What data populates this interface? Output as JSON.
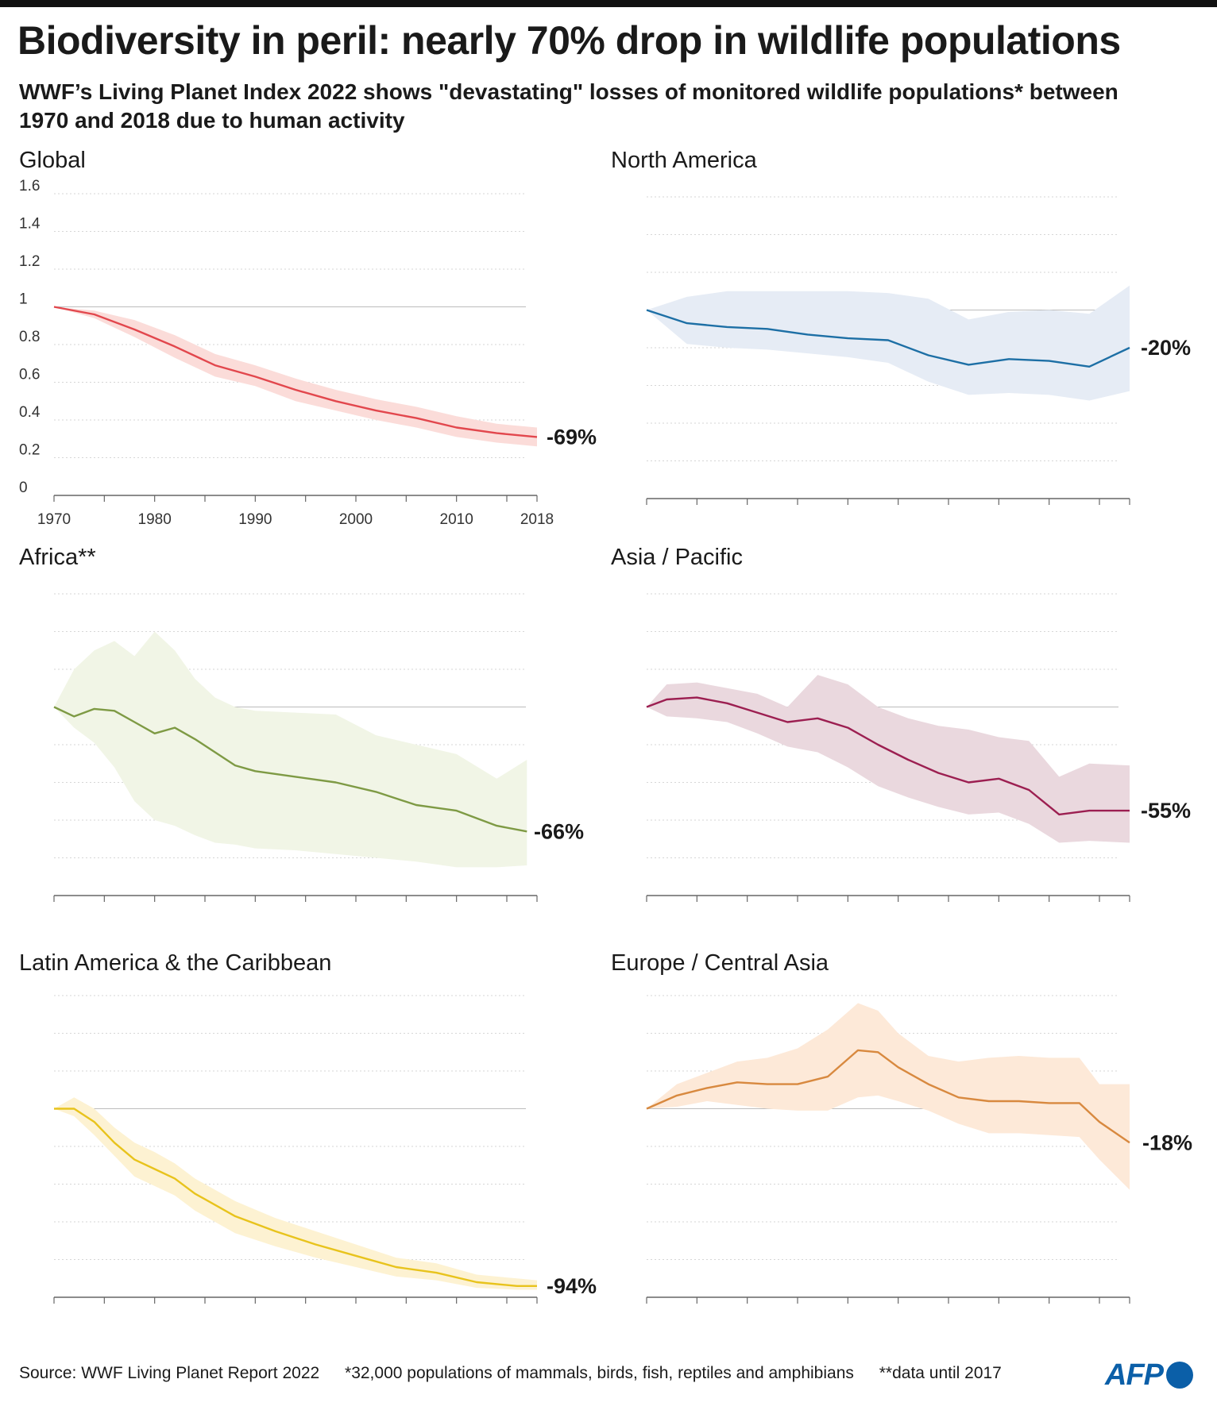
{
  "title": "Biodiversity in peril: nearly 70% drop in wildlife populations",
  "subtitle": "WWF’s Living Planet Index 2022 shows \"devastating\" losses of monitored wildlife populations* between 1970 and 2018 due to human activity",
  "footer": {
    "source": "Source: WWF Living Planet Report 2022",
    "note1": "*32,000 populations of mammals, birds, fish, reptiles and amphibians",
    "note2": "**data until 2017"
  },
  "logo": "AFP",
  "chart_data": [
    {
      "type": "line",
      "title": "Global",
      "color": "#e2474d",
      "band_color": "#fbdcd9",
      "change_label": "-69%",
      "ylim": [
        0,
        1.6
      ],
      "yticks": [
        0,
        0.2,
        0.4,
        0.6,
        0.8,
        1,
        1.2,
        1.4,
        1.6
      ],
      "xlim": [
        1970,
        2018
      ],
      "xticks": [
        1970,
        1980,
        1990,
        2000,
        2010,
        2018
      ],
      "x": [
        1970,
        1974,
        1978,
        1982,
        1986,
        1990,
        1994,
        1998,
        2002,
        2006,
        2010,
        2014,
        2018
      ],
      "values": [
        1.0,
        0.96,
        0.88,
        0.79,
        0.69,
        0.63,
        0.56,
        0.5,
        0.45,
        0.41,
        0.36,
        0.33,
        0.31
      ],
      "upper": [
        1.0,
        0.98,
        0.93,
        0.85,
        0.75,
        0.69,
        0.62,
        0.56,
        0.51,
        0.47,
        0.42,
        0.38,
        0.36
      ],
      "lower": [
        1.0,
        0.94,
        0.84,
        0.73,
        0.63,
        0.58,
        0.5,
        0.45,
        0.4,
        0.36,
        0.31,
        0.28,
        0.26
      ]
    },
    {
      "type": "line",
      "title": "North America",
      "color": "#1d6fa5",
      "band_color": "#e6ecf5",
      "change_label": "-20%",
      "ylim": [
        0,
        1.6
      ],
      "xlim": [
        1970,
        2018
      ],
      "x": [
        1970,
        1974,
        1978,
        1982,
        1986,
        1990,
        1994,
        1998,
        2002,
        2006,
        2010,
        2014,
        2018
      ],
      "values": [
        1.0,
        0.93,
        0.91,
        0.9,
        0.87,
        0.85,
        0.84,
        0.76,
        0.71,
        0.74,
        0.73,
        0.7,
        0.8
      ],
      "upper": [
        1.0,
        1.07,
        1.1,
        1.1,
        1.1,
        1.1,
        1.09,
        1.06,
        0.95,
        0.99,
        1.0,
        0.98,
        1.13
      ],
      "lower": [
        1.0,
        0.82,
        0.8,
        0.79,
        0.77,
        0.75,
        0.72,
        0.62,
        0.55,
        0.56,
        0.55,
        0.52,
        0.57
      ]
    },
    {
      "type": "line",
      "title": "Africa**",
      "color": "#7e9a44",
      "band_color": "#f1f5e6",
      "change_label": "-66%",
      "ylim": [
        0,
        1.6
      ],
      "xlim": [
        1970,
        2018
      ],
      "x": [
        1970,
        1972,
        1974,
        1976,
        1978,
        1980,
        1982,
        1984,
        1986,
        1988,
        1990,
        1994,
        1998,
        2002,
        2006,
        2010,
        2014,
        2017
      ],
      "values": [
        1.0,
        0.95,
        0.99,
        0.98,
        0.92,
        0.86,
        0.89,
        0.83,
        0.76,
        0.69,
        0.66,
        0.63,
        0.6,
        0.55,
        0.48,
        0.45,
        0.37,
        0.34
      ],
      "upper": [
        1.0,
        1.2,
        1.3,
        1.35,
        1.27,
        1.4,
        1.3,
        1.15,
        1.05,
        1.0,
        0.98,
        0.97,
        0.96,
        0.85,
        0.8,
        0.75,
        0.62,
        0.72
      ],
      "lower": [
        1.0,
        0.89,
        0.81,
        0.68,
        0.5,
        0.4,
        0.37,
        0.32,
        0.28,
        0.27,
        0.25,
        0.24,
        0.22,
        0.2,
        0.18,
        0.15,
        0.15,
        0.16
      ]
    },
    {
      "type": "line",
      "title": "Asia / Pacific",
      "color": "#9c1f51",
      "band_color": "#ead8de",
      "change_label": "-55%",
      "ylim": [
        0,
        1.6
      ],
      "xlim": [
        1970,
        2018
      ],
      "x": [
        1970,
        1972,
        1975,
        1978,
        1981,
        1984,
        1987,
        1990,
        1993,
        1996,
        1999,
        2002,
        2005,
        2008,
        2011,
        2014,
        2018
      ],
      "values": [
        1.0,
        1.04,
        1.05,
        1.02,
        0.97,
        0.92,
        0.94,
        0.89,
        0.8,
        0.72,
        0.65,
        0.6,
        0.62,
        0.56,
        0.43,
        0.45,
        0.45
      ],
      "upper": [
        1.0,
        1.12,
        1.13,
        1.1,
        1.07,
        1.0,
        1.17,
        1.12,
        1.0,
        0.94,
        0.9,
        0.88,
        0.84,
        0.82,
        0.63,
        0.7,
        0.69
      ],
      "lower": [
        1.0,
        0.95,
        0.94,
        0.92,
        0.86,
        0.79,
        0.76,
        0.68,
        0.58,
        0.52,
        0.47,
        0.43,
        0.44,
        0.38,
        0.28,
        0.29,
        0.28
      ]
    },
    {
      "type": "line",
      "title": "Latin America & the Caribbean",
      "color": "#e8c31c",
      "band_color": "#fdf2d2",
      "change_label": "-94%",
      "ylim": [
        0,
        1.6
      ],
      "xlim": [
        1970,
        2018
      ],
      "x": [
        1970,
        1972,
        1974,
        1976,
        1978,
        1980,
        1982,
        1984,
        1988,
        1992,
        1996,
        2000,
        2004,
        2008,
        2012,
        2016,
        2018
      ],
      "values": [
        1.0,
        1.0,
        0.93,
        0.82,
        0.73,
        0.68,
        0.63,
        0.55,
        0.43,
        0.35,
        0.28,
        0.22,
        0.16,
        0.13,
        0.08,
        0.06,
        0.06
      ],
      "upper": [
        1.0,
        1.06,
        1.0,
        0.9,
        0.82,
        0.77,
        0.71,
        0.63,
        0.51,
        0.42,
        0.35,
        0.28,
        0.21,
        0.18,
        0.12,
        0.1,
        0.09
      ],
      "lower": [
        1.0,
        0.96,
        0.86,
        0.75,
        0.64,
        0.59,
        0.54,
        0.46,
        0.34,
        0.27,
        0.21,
        0.16,
        0.11,
        0.09,
        0.05,
        0.04,
        0.04
      ]
    },
    {
      "type": "line",
      "title": "Europe / Central Asia",
      "color": "#d8893f",
      "band_color": "#fde9d8",
      "change_label": "-18%",
      "ylim": [
        0,
        1.6
      ],
      "xlim": [
        1970,
        2018
      ],
      "x": [
        1970,
        1973,
        1976,
        1979,
        1982,
        1985,
        1988,
        1991,
        1993,
        1995,
        1998,
        2001,
        2004,
        2007,
        2010,
        2013,
        2015,
        2018
      ],
      "values": [
        1.0,
        1.07,
        1.11,
        1.14,
        1.13,
        1.13,
        1.17,
        1.31,
        1.3,
        1.22,
        1.13,
        1.06,
        1.04,
        1.04,
        1.03,
        1.03,
        0.93,
        0.82
      ],
      "upper": [
        1.0,
        1.13,
        1.19,
        1.25,
        1.27,
        1.32,
        1.42,
        1.56,
        1.52,
        1.4,
        1.28,
        1.25,
        1.27,
        1.28,
        1.27,
        1.27,
        1.13,
        1.13
      ],
      "lower": [
        1.0,
        1.01,
        1.04,
        1.02,
        1.0,
        0.99,
        0.99,
        1.06,
        1.07,
        1.04,
        0.99,
        0.92,
        0.87,
        0.87,
        0.86,
        0.85,
        0.73,
        0.57
      ]
    }
  ]
}
